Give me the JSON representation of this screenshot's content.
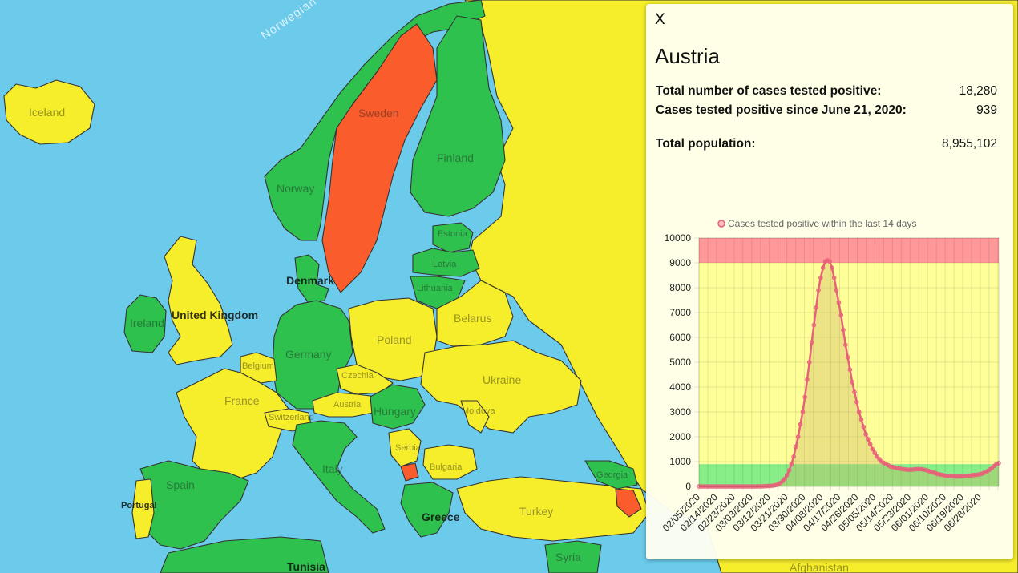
{
  "map": {
    "colors": {
      "sea": "#6ccbea",
      "green": "#2ec14e",
      "yellow": "#f7ee2b",
      "red": "#fb5c2c"
    },
    "countries": [
      {
        "id": "iceland",
        "label": "Iceland",
        "status": "yellow"
      },
      {
        "id": "norway",
        "label": "Norway",
        "status": "green"
      },
      {
        "id": "sweden",
        "label": "Sweden",
        "status": "red"
      },
      {
        "id": "finland",
        "label": "Finland",
        "status": "green"
      },
      {
        "id": "estonia",
        "label": "Estonia",
        "status": "green"
      },
      {
        "id": "latvia",
        "label": "Latvia",
        "status": "green"
      },
      {
        "id": "lithuania",
        "label": "Lithuania",
        "status": "green"
      },
      {
        "id": "denmark",
        "label": "Denmark",
        "status": "green"
      },
      {
        "id": "united-kingdom",
        "label": "United Kingdom",
        "status": "yellow"
      },
      {
        "id": "ireland",
        "label": "Ireland",
        "status": "green"
      },
      {
        "id": "germany",
        "label": "Germany",
        "status": "green"
      },
      {
        "id": "poland",
        "label": "Poland",
        "status": "yellow"
      },
      {
        "id": "belarus",
        "label": "Belarus",
        "status": "yellow"
      },
      {
        "id": "ukraine",
        "label": "Ukraine",
        "status": "yellow"
      },
      {
        "id": "france",
        "label": "France",
        "status": "yellow"
      },
      {
        "id": "belgium",
        "label": "Belgium",
        "status": "yellow"
      },
      {
        "id": "czechia",
        "label": "Czechia",
        "status": "yellow"
      },
      {
        "id": "austria",
        "label": "Austria",
        "status": "yellow"
      },
      {
        "id": "switzerland",
        "label": "Switzerland",
        "status": "yellow"
      },
      {
        "id": "hungary",
        "label": "Hungary",
        "status": "green"
      },
      {
        "id": "moldova",
        "label": "Moldova",
        "status": "yellow"
      },
      {
        "id": "serbia",
        "label": "Serbia",
        "status": "yellow"
      },
      {
        "id": "bulgaria",
        "label": "Bulgaria",
        "status": "yellow"
      },
      {
        "id": "italy",
        "label": "Italy",
        "status": "green"
      },
      {
        "id": "spain",
        "label": "Spain",
        "status": "green"
      },
      {
        "id": "portugal",
        "label": "Portugal",
        "status": "yellow"
      },
      {
        "id": "greece",
        "label": "Greece",
        "status": "green"
      },
      {
        "id": "turkey",
        "label": "Turkey",
        "status": "yellow"
      },
      {
        "id": "georgia",
        "label": "Georgia",
        "status": "green"
      },
      {
        "id": "syria",
        "label": "Syria",
        "status": "green"
      },
      {
        "id": "tunisia",
        "label": "Tunisia",
        "status": "green"
      },
      {
        "id": "russia",
        "label": "",
        "status": "yellow"
      }
    ],
    "sea_labels": [
      "Norwegian Sea"
    ],
    "partial_labels": [
      "Afghanistan"
    ]
  },
  "panel": {
    "close_label": "X",
    "country": "Austria",
    "stats": [
      {
        "label": "Total number of cases tested positive:",
        "value": "18,280"
      },
      {
        "label": "Cases tested positive since June 21, 2020:",
        "value": "939"
      },
      {
        "label": "Total population:",
        "value": "8,955,102"
      }
    ]
  },
  "chart_data": {
    "type": "line",
    "title": "",
    "xlabel": "",
    "ylabel": "",
    "ylim": [
      0,
      10000
    ],
    "yticks": [
      0,
      1000,
      2000,
      3000,
      4000,
      5000,
      6000,
      7000,
      8000,
      9000,
      10000
    ],
    "yticks_labels": [
      "0",
      "1000",
      "2000",
      "3000",
      "4000",
      "5000",
      "6000",
      "7000",
      "8000",
      "9000",
      "10000"
    ],
    "x_tick_labels": [
      "02/05/2020",
      "02/14/2020",
      "02/23/2020",
      "03/03/2020",
      "03/12/2020",
      "03/21/2020",
      "03/30/2020",
      "04/08/2020",
      "04/17/2020",
      "04/26/2020",
      "05/05/2020",
      "05/14/2020",
      "05/23/2020",
      "06/01/2020",
      "06/10/2020",
      "06/19/2020",
      "06/28/2020"
    ],
    "grid": true,
    "legend": "top",
    "bands": [
      {
        "from": 0,
        "to": 900,
        "color": "#88ee88"
      },
      {
        "from": 900,
        "to": 9000,
        "color": "#ffff99"
      },
      {
        "from": 9000,
        "to": 10000,
        "color": "#ff9999"
      }
    ],
    "line_color": "#e8607a",
    "fill_color": "#c8b060",
    "series": [
      {
        "name": "Cases tested positive within the last 14 days",
        "start": "02/05/2020",
        "values": [
          0,
          0,
          0,
          0,
          0,
          0,
          0,
          0,
          0,
          0,
          0,
          0,
          0,
          0,
          0,
          0,
          0,
          0,
          0,
          0,
          0,
          0,
          0,
          0,
          0,
          0,
          0,
          2,
          4,
          8,
          12,
          18,
          25,
          35,
          50,
          80,
          130,
          200,
          300,
          450,
          650,
          900,
          1200,
          1600,
          2000,
          2500,
          3000,
          3600,
          4300,
          5000,
          5800,
          6500,
          7200,
          7900,
          8400,
          8800,
          9050,
          9100,
          9050,
          8800,
          8400,
          7900,
          7400,
          6900,
          6300,
          5700,
          5200,
          4700,
          4200,
          3800,
          3400,
          3000,
          2700,
          2400,
          2100,
          1900,
          1700,
          1500,
          1350,
          1200,
          1100,
          1000,
          950,
          900,
          850,
          800,
          780,
          760,
          740,
          720,
          700,
          690,
          680,
          670,
          670,
          680,
          690,
          700,
          700,
          690,
          670,
          650,
          620,
          590,
          560,
          530,
          500,
          480,
          460,
          440,
          430,
          420,
          410,
          400,
          400,
          400,
          400,
          410,
          420,
          430,
          440,
          450,
          460,
          470,
          480,
          500,
          530,
          570,
          620,
          680,
          750,
          830,
          920,
          939
        ]
      }
    ]
  }
}
